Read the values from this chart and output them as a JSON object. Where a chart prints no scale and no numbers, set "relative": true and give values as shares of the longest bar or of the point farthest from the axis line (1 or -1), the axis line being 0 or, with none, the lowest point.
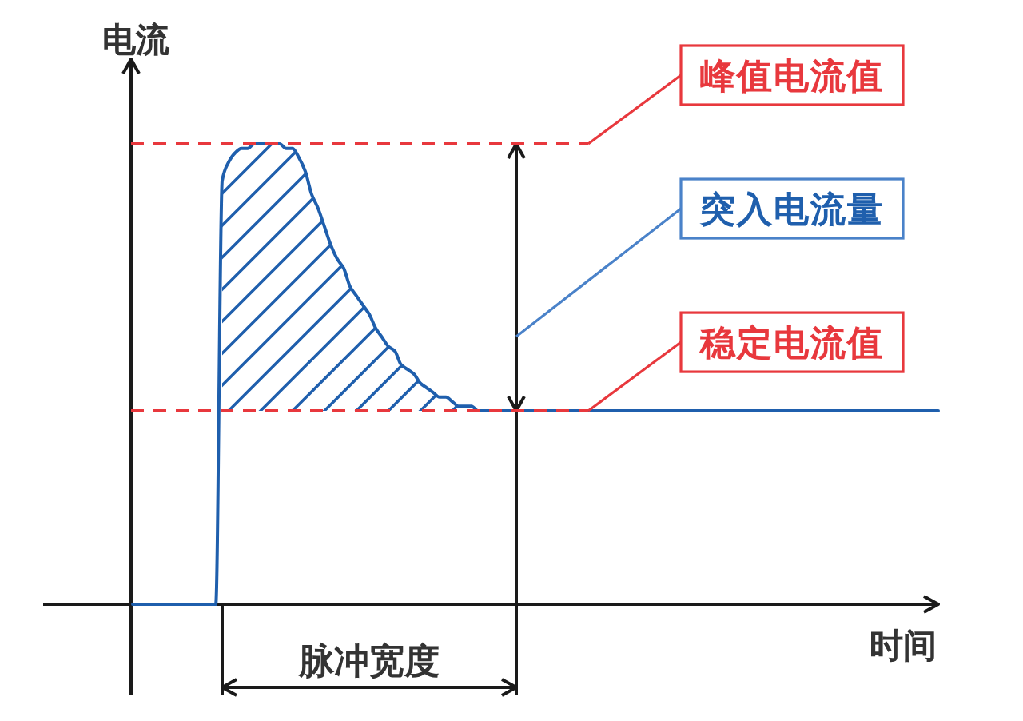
{
  "chart_data": {
    "type": "line",
    "xlabel": "时间",
    "ylabel": "电流",
    "relative": true,
    "categories": [
      null,
      null,
      null,
      null,
      null,
      null,
      null,
      null,
      null,
      null,
      null,
      null,
      null,
      null,
      null,
      null,
      null,
      null,
      null,
      null,
      null,
      null,
      null,
      null,
      null,
      null,
      null,
      null,
      null,
      null,
      null,
      null,
      null,
      null,
      null,
      null,
      null,
      null,
      null,
      null,
      null,
      null,
      null,
      null,
      null,
      null,
      null,
      null,
      null,
      null,
      null,
      null,
      null,
      null,
      null,
      null,
      null,
      null,
      null,
      null,
      null,
      null,
      null,
      null,
      null,
      null,
      null,
      null,
      null,
      null,
      null,
      null,
      null,
      null,
      null,
      null,
      null,
      null,
      null,
      null,
      null,
      null,
      null,
      null,
      null,
      null,
      null,
      null,
      null,
      null,
      null,
      null,
      null,
      null,
      null,
      null,
      null,
      null,
      null,
      null,
      null,
      null,
      null,
      null,
      null,
      null,
      null,
      null,
      null,
      null,
      null,
      null,
      null,
      null,
      null,
      null,
      null,
      null,
      null,
      null,
      null,
      null,
      null,
      null,
      null,
      null,
      null
    ],
    "series": [
      {
        "color": "#1f5fad",
        "values": [
          0,
          0,
          0,
          0,
          0,
          0,
          0,
          0,
          0,
          0,
          0,
          0,
          0,
          0,
          0.92,
          0.96,
          0.98,
          0.99,
          0.99,
          1,
          1,
          1,
          1,
          1,
          0.99,
          0.99,
          0.97,
          0.94,
          0.89,
          0.86,
          0.82,
          0.78,
          0.75,
          0.73,
          0.69,
          0.67,
          0.65,
          0.63,
          0.6,
          0.58,
          0.56,
          0.55,
          0.52,
          0.51,
          0.5,
          0.48,
          0.47,
          0.46,
          0.45,
          0.45,
          0.44,
          0.43,
          0.43,
          0.43,
          0.42,
          0.42,
          0.42,
          0.42,
          0.42,
          0.42,
          0.42,
          0.42,
          0.42,
          0.42,
          0.42,
          0.42,
          0.42,
          0.42,
          0.42,
          0.42,
          0.42,
          0.42,
          0.42,
          0.42,
          0.42,
          0.42,
          0.42,
          0.42,
          0.42,
          0.42,
          0.42,
          0.42,
          0.42,
          0.42,
          0.42,
          0.42,
          0.42,
          0.42,
          0.42,
          0.42,
          0.42,
          0.42,
          0.42,
          0.42,
          0.42,
          0.42,
          0.42,
          0.42,
          0.42,
          0.42,
          0.42,
          0.42,
          0.42,
          0.42,
          0.42,
          0.42,
          0.42,
          0.42,
          0.42,
          0.42,
          0.42,
          0.42,
          0.42,
          0.42,
          0.42,
          0.42,
          0.42,
          0.42,
          0.42,
          0.42,
          0.42,
          0.42,
          0.42,
          0.42,
          0.42,
          0.42,
          0.42
        ],
        "upper": [
          null,
          null,
          null,
          null,
          null,
          null,
          null,
          null,
          null,
          null,
          null,
          null,
          null,
          null,
          0.92,
          0.96,
          0.98,
          0.99,
          0.99,
          1,
          1,
          1,
          1,
          1,
          0.99,
          0.99,
          0.97,
          0.94,
          0.89,
          0.86,
          0.82,
          0.78,
          0.75,
          0.73,
          0.69,
          0.67,
          0.65,
          0.63,
          0.6,
          0.58,
          0.56,
          0.55,
          0.52,
          0.51,
          0.5,
          0.48,
          0.47,
          0.46,
          0.45,
          0.45,
          0.44,
          0.43,
          0.43,
          0.43,
          0.42,
          0.42,
          0.42,
          0.42,
          0.42,
          0.42,
          0.42,
          null,
          null,
          null,
          null,
          null,
          null,
          null,
          null,
          null,
          null,
          null,
          null,
          null,
          null,
          null,
          null,
          null,
          null,
          null,
          null,
          null,
          null,
          null,
          null,
          null,
          null,
          null,
          null,
          null,
          null,
          null,
          null,
          null,
          null,
          null,
          null,
          null,
          null,
          null,
          null,
          null,
          null,
          null,
          null,
          null,
          null,
          null,
          null,
          null,
          null,
          null,
          null,
          null,
          null,
          null,
          null,
          null,
          null,
          null,
          null,
          null,
          null,
          null,
          null,
          null,
          null
        ],
        "lower": [
          null,
          null,
          null,
          null,
          null,
          null,
          null,
          null,
          null,
          null,
          null,
          null,
          null,
          null,
          0.42,
          0.42,
          0.42,
          0.42,
          0.42,
          0.42,
          0.42,
          0.42,
          0.42,
          0.42,
          0.42,
          0.42,
          0.42,
          0.42,
          0.42,
          0.42,
          0.42,
          0.42,
          0.42,
          0.42,
          0.42,
          0.42,
          0.42,
          0.42,
          0.42,
          0.42,
          0.42,
          0.42,
          0.42,
          0.42,
          0.42,
          0.42,
          0.42,
          0.42,
          0.42,
          0.42,
          0.42,
          0.42,
          0.42,
          0.42,
          0.42,
          0.42,
          0.42,
          0.42,
          0.42,
          0.42,
          0.42,
          null,
          null,
          null,
          null,
          null,
          null,
          null,
          null,
          null,
          null,
          null,
          null,
          null,
          null,
          null,
          null,
          null,
          null,
          null,
          null,
          null,
          null,
          null,
          null,
          null,
          null,
          null,
          null,
          null,
          null,
          null,
          null,
          null,
          null,
          null,
          null,
          null,
          null,
          null,
          null,
          null,
          null,
          null,
          null,
          null,
          null,
          null,
          null,
          null,
          null,
          null,
          null,
          null,
          null,
          null,
          null,
          null,
          null,
          null,
          null,
          null,
          null,
          null,
          null,
          null,
          null
        ]
      }
    ],
    "ref_lines": [
      {
        "axis": "y",
        "value": 1,
        "label": "峰值电流值",
        "color": "#e8383d",
        "line_style": "dashed"
      },
      {
        "axis": "y",
        "value": 0.42,
        "label": "稳定电流值",
        "color": "#e8383d",
        "line_style": "dashed"
      }
    ],
    "annotations": [
      "突入电流量",
      "脉冲宽度"
    ]
  }
}
